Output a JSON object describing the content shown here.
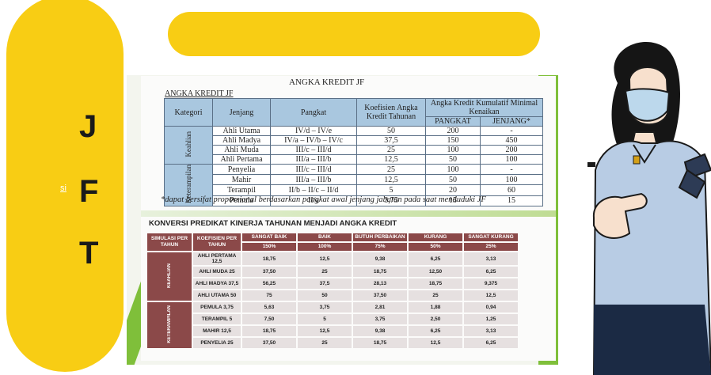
{
  "side_banner": {
    "letters": [
      "J",
      "F",
      "T"
    ],
    "small_link": "si"
  },
  "table1": {
    "title": "ANGKA KREDIT JF",
    "subtitle": "ANGKA KREDIT JF",
    "headers": {
      "kategori": "Kategori",
      "jenjang": "Jenjang",
      "pangkat": "Pangkat",
      "koefisien": "Koefisien Angka Kredit Tahunan",
      "kumulatif": "Angka Kredit Kumulatif Minimal Kenaikan",
      "kum_pangkat": "PANGKAT",
      "kum_jenjang": "JENJANG*"
    },
    "groups": [
      {
        "name": "Keahlian",
        "rows": [
          {
            "jenjang": "Ahli Utama",
            "pangkat": "IV/d – IV/e",
            "koef": "50",
            "pangkat_kum": "200",
            "jenjang_kum": "-"
          },
          {
            "jenjang": "Ahli Madya",
            "pangkat": "IV/a – IV/b – IV/c",
            "koef": "37,5",
            "pangkat_kum": "150",
            "jenjang_kum": "450"
          },
          {
            "jenjang": "Ahli Muda",
            "pangkat": "III/c – III/d",
            "koef": "25",
            "pangkat_kum": "100",
            "jenjang_kum": "200"
          },
          {
            "jenjang": "Ahli Pertama",
            "pangkat": "III/a – III/b",
            "koef": "12,5",
            "pangkat_kum": "50",
            "jenjang_kum": "100"
          }
        ]
      },
      {
        "name": "Keterampilan",
        "rows": [
          {
            "jenjang": "Penyelia",
            "pangkat": "III/c – III/d",
            "koef": "25",
            "pangkat_kum": "100",
            "jenjang_kum": "-"
          },
          {
            "jenjang": "Mahir",
            "pangkat": "III/a – III/b",
            "koef": "12,5",
            "pangkat_kum": "50",
            "jenjang_kum": "100"
          },
          {
            "jenjang": "Terampil",
            "pangkat": "II/b – II/c – II/d",
            "koef": "5",
            "pangkat_kum": "20",
            "jenjang_kum": "60"
          },
          {
            "jenjang": "Pemula",
            "pangkat": "II/a",
            "koef": "3,75",
            "pangkat_kum": "15",
            "jenjang_kum": "15"
          }
        ]
      }
    ],
    "note": "*dapat bersifat proporsional berdasarkan pangkat awal jenjang jabatan pada saat menduduki JF"
  },
  "table2": {
    "title": "KONVERSI PREDIKAT KINERJA TAHUNAN MENJADI ANGKA KREDIT",
    "headers": [
      "SIMULASI PER TAHUN",
      "KOEFISIEN PER TAHUN",
      "SANGAT BAIK",
      "BAIK",
      "BUTUH PERBAIKAN",
      "KURANG",
      "SANGAT KURANG"
    ],
    "percents": [
      "150%",
      "100%",
      "75%",
      "50%",
      "25%"
    ],
    "groups": [
      {
        "name": "KEAHLIAN",
        "rows": [
          {
            "label": "AHLI PERTAMA 12,5",
            "values": [
              "18,75",
              "12,5",
              "9,38",
              "6,25",
              "3,13"
            ]
          },
          {
            "label": "AHLI MUDA 25",
            "values": [
              "37,50",
              "25",
              "18,75",
              "12,50",
              "6,25"
            ]
          },
          {
            "label": "AHLI MADYA 37,5",
            "values": [
              "56,25",
              "37,5",
              "28,13",
              "18,75",
              "9,375"
            ]
          },
          {
            "label": "AHLI UTAMA 50",
            "values": [
              "75",
              "50",
              "37,50",
              "25",
              "12,5"
            ]
          }
        ]
      },
      {
        "name": "KETERAMPILAN",
        "rows": [
          {
            "label": "PEMULA 3,75",
            "values": [
              "5,63",
              "3,75",
              "2,81",
              "1,88",
              "0,94"
            ]
          },
          {
            "label": "TERAMPIL 5",
            "values": [
              "7,50",
              "5",
              "3,75",
              "2,50",
              "1,25"
            ]
          },
          {
            "label": "MAHIR 12,5",
            "values": [
              "18,75",
              "12,5",
              "9,38",
              "6,25",
              "3,13"
            ]
          },
          {
            "label": "PENYELIA 25",
            "values": [
              "37,50",
              "25",
              "18,75",
              "12,5",
              "6,25"
            ]
          }
        ]
      }
    ]
  },
  "colors": {
    "yellow": "#f8cd14",
    "green": "#7fbf3a",
    "blue_header": "#a9c7df",
    "maroon": "#8b4949"
  },
  "illustration": {
    "name": "officer-illustration"
  }
}
